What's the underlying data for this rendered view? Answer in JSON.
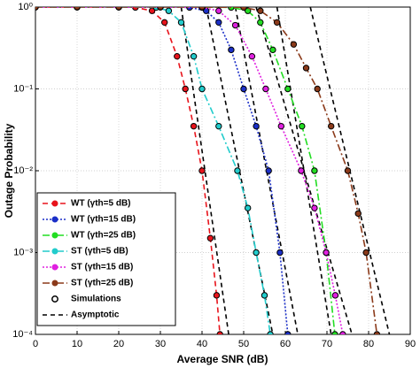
{
  "chart_data": {
    "type": "line",
    "xlabel": "Average SNR (dB)",
    "ylabel": "Outage Probability",
    "xlim": [
      0,
      90
    ],
    "xticks": [
      0,
      10,
      20,
      30,
      40,
      50,
      60,
      70,
      80,
      90
    ],
    "ylim": [
      0.0001,
      1
    ],
    "yticks": [
      {
        "value": 0.0001,
        "label": "10⁻⁴"
      },
      {
        "value": 0.001,
        "label": "10⁻³"
      },
      {
        "value": 0.01,
        "label": "10⁻²"
      },
      {
        "value": 0.1,
        "label": "10⁻¹"
      },
      {
        "value": 1,
        "label": "10⁰"
      }
    ],
    "log_y": true,
    "grid": true,
    "legend_corner": "lower left",
    "series": [
      {
        "name": "WT (γth=5 dB)",
        "color": "#e8141c",
        "dash": "6,4",
        "x": [
          0,
          10,
          20,
          24,
          28,
          31,
          34,
          36,
          38,
          40,
          42,
          43.5,
          44.3
        ],
        "values": [
          1,
          1,
          1,
          0.99,
          0.9,
          0.65,
          0.25,
          0.1,
          0.035,
          0.01,
          0.0015,
          0.0003,
          0.0001
        ]
      },
      {
        "name": "WT (γth=15 dB)",
        "color": "#1b2fc8",
        "dash": "2,2",
        "x": [
          0,
          10,
          20,
          30,
          37,
          41,
          44,
          47,
          50,
          53,
          56,
          58.7,
          60.6
        ],
        "values": [
          1,
          1,
          1,
          1,
          0.99,
          0.9,
          0.65,
          0.3,
          0.1,
          0.035,
          0.01,
          0.001,
          0.0001
        ]
      },
      {
        "name": "WT (γth=25 dB)",
        "color": "#22dd22",
        "dash": "8,3,2,3",
        "x": [
          0,
          10,
          20,
          30,
          40,
          47,
          51,
          54,
          57,
          60.6,
          64,
          67,
          69.8,
          71.9
        ],
        "values": [
          1,
          1,
          1,
          1,
          1,
          0.99,
          0.9,
          0.65,
          0.3,
          0.1,
          0.035,
          0.01,
          0.001,
          0.0001
        ]
      },
      {
        "name": "ST (γth=5 dB)",
        "color": "#22cccc",
        "dash": "8,3,2,3",
        "x": [
          0,
          10,
          20,
          29,
          32,
          35,
          38,
          40,
          44,
          48.5,
          51,
          53,
          55,
          56.4
        ],
        "values": [
          1,
          1,
          1,
          0.99,
          0.9,
          0.65,
          0.25,
          0.1,
          0.035,
          0.01,
          0.0035,
          0.001,
          0.0003,
          0.0001
        ]
      },
      {
        "name": "ST (γth=15 dB)",
        "color": "#e020e0",
        "dash": "2,2",
        "x": [
          0,
          10,
          20,
          30,
          40,
          44,
          48,
          52,
          55.3,
          59,
          63.8,
          67,
          69.8,
          72,
          73.8
        ],
        "values": [
          1,
          1,
          1,
          1,
          0.99,
          0.9,
          0.6,
          0.25,
          0.1,
          0.035,
          0.01,
          0.0035,
          0.001,
          0.0003,
          0.0001
        ]
      },
      {
        "name": "ST (γth=25 dB)",
        "color": "#8b3a1a",
        "dash": "8,3,2,3",
        "x": [
          0,
          10,
          20,
          30,
          40,
          50,
          54,
          58,
          62,
          65,
          67.7,
          71,
          75,
          77.5,
          79.4,
          82
        ],
        "values": [
          1,
          1,
          1,
          1,
          1,
          0.99,
          0.9,
          0.65,
          0.35,
          0.18,
          0.1,
          0.035,
          0.01,
          0.003,
          0.001,
          0.0001
        ]
      }
    ],
    "simulations": {
      "name": "Simulations"
    },
    "asymptote": {
      "name": "Asymptotic",
      "color": "#000000",
      "lines": [
        {
          "x": [
            35,
            46.4
          ],
          "values": [
            1,
            0.0001
          ]
        },
        {
          "x": [
            41,
            57
          ],
          "values": [
            1,
            0.0001
          ]
        },
        {
          "x": [
            48,
            63
          ],
          "values": [
            1,
            0.0001
          ]
        },
        {
          "x": [
            53,
            76
          ],
          "values": [
            1,
            0.0001
          ]
        },
        {
          "x": [
            58,
            71
          ],
          "values": [
            1,
            0.0001
          ]
        },
        {
          "x": [
            66,
            85
          ],
          "values": [
            1,
            0.0001
          ]
        }
      ]
    }
  }
}
